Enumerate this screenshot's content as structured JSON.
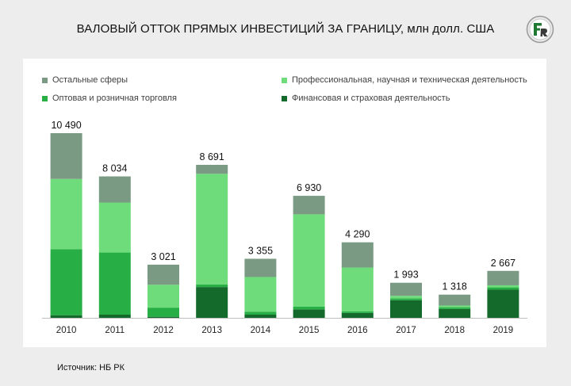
{
  "title": "ВАЛОВЫЙ ОТТОК ПРЯМЫХ ИНВЕСТИЦИЙ ЗА ГРАНИЦУ, млн долл. США",
  "logo": {
    "text": "FR",
    "icon": "fr-logo-icon"
  },
  "source": "Источник: НБ РК",
  "legend": [
    {
      "label": "Остальные сферы",
      "color": "#7a9a84"
    },
    {
      "label": "Профессиональная, научная и техническая деятельность",
      "color": "#6edc7a"
    },
    {
      "label": "Оптовая и розничная торговля",
      "color": "#27ae45"
    },
    {
      "label": "Финансовая и страховая деятельность",
      "color": "#146a2a"
    }
  ],
  "chart_data": {
    "type": "bar",
    "stacked": true,
    "categories": [
      "2010",
      "2011",
      "2012",
      "2013",
      "2014",
      "2015",
      "2016",
      "2017",
      "2018",
      "2019"
    ],
    "totals": [
      10490,
      8034,
      3021,
      8691,
      3355,
      6930,
      4290,
      1993,
      1318,
      2667
    ],
    "total_labels": [
      "10 490",
      "8 034",
      "3 021",
      "8 691",
      "3 355",
      "6 930",
      "4 290",
      "1 993",
      "1 318",
      "2 667"
    ],
    "series": [
      {
        "name": "Финансовая и страховая деятельность",
        "values": [
          150,
          180,
          60,
          1750,
          180,
          480,
          280,
          1000,
          500,
          1600
        ]
      },
      {
        "name": "Оптовая и розничная торговля",
        "values": [
          3750,
          3530,
          520,
          150,
          170,
          150,
          80,
          100,
          100,
          130
        ]
      },
      {
        "name": "Профессиональная, научная и техническая деятельность",
        "values": [
          3990,
          2840,
          1300,
          6280,
          1970,
          5250,
          2500,
          150,
          100,
          117
        ]
      },
      {
        "name": "Остальные сферы",
        "values": [
          2600,
          1484,
          1141,
          511,
          1035,
          1050,
          1430,
          743,
          618,
          820
        ]
      }
    ],
    "ylim": [
      0,
      10490
    ],
    "legend_position": "top"
  }
}
